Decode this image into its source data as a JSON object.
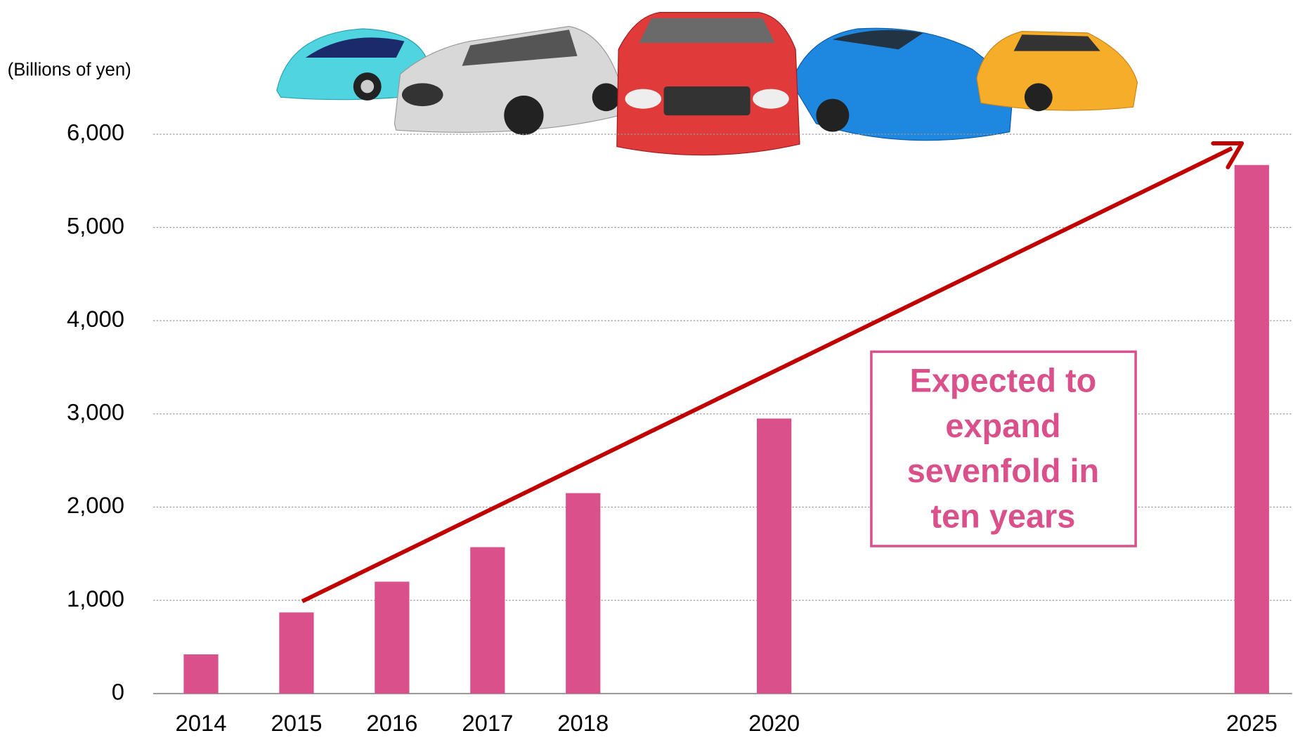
{
  "chart_data": {
    "type": "bar",
    "y_label": "(Billions of yen)",
    "x": [
      2014,
      2015,
      2016,
      2017,
      2018,
      2020,
      2025
    ],
    "values": [
      420,
      870,
      1200,
      1570,
      2150,
      2950,
      5670
    ],
    "color": "#d9508a",
    "xlim": [
      2013.5,
      2025.5
    ],
    "xticks": [
      2014,
      2015,
      2016,
      2017,
      2018,
      2020,
      2025
    ],
    "ylim": [
      0,
      6000
    ],
    "yticks": [
      0,
      {
        "value": 1000,
        "label": "1,000"
      },
      {
        "value": 2000,
        "label": "2,000"
      },
      {
        "value": 3000,
        "label": "3,000"
      },
      {
        "value": 4000,
        "label": "4,000"
      },
      {
        "value": 5000,
        "label": "5,000"
      },
      {
        "value": 6000,
        "label": "6,000"
      }
    ],
    "grid": true,
    "annotation": [
      "Expected to",
      "expand",
      "sevenfold in",
      "ten years"
    ]
  }
}
